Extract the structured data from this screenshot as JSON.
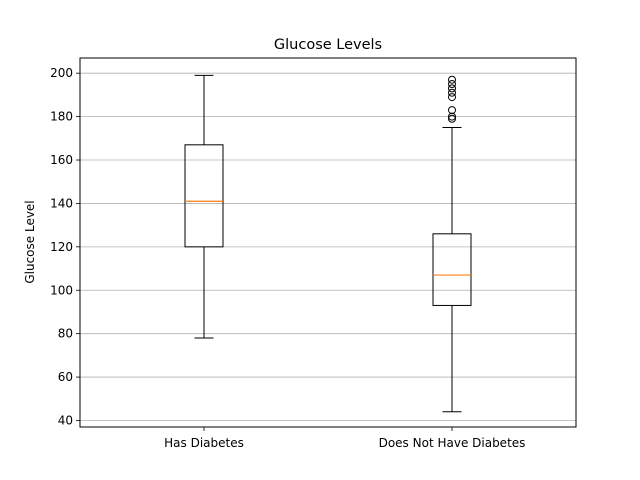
{
  "chart_data": {
    "type": "box",
    "title": "Glucose Levels",
    "xlabel": "",
    "ylabel": "Glucose Level",
    "ylim": [
      37,
      207
    ],
    "yticks": [
      40,
      60,
      80,
      100,
      120,
      140,
      160,
      180,
      200
    ],
    "grid": "horizontal",
    "categories": [
      "Has Diabetes",
      "Does Not Have Diabetes"
    ],
    "boxes": [
      {
        "whisker_low": 78,
        "q1": 120,
        "median": 141,
        "q3": 167,
        "whisker_high": 199,
        "outliers": []
      },
      {
        "whisker_low": 44,
        "q1": 93,
        "median": 107,
        "q3": 126,
        "whisker_high": 175,
        "outliers": [
          179,
          180,
          183,
          189,
          191,
          193,
          195,
          197
        ]
      }
    ],
    "colors": {
      "box": "#000000",
      "median": "#ff7f0e",
      "grid": "#b0b0b0"
    }
  }
}
